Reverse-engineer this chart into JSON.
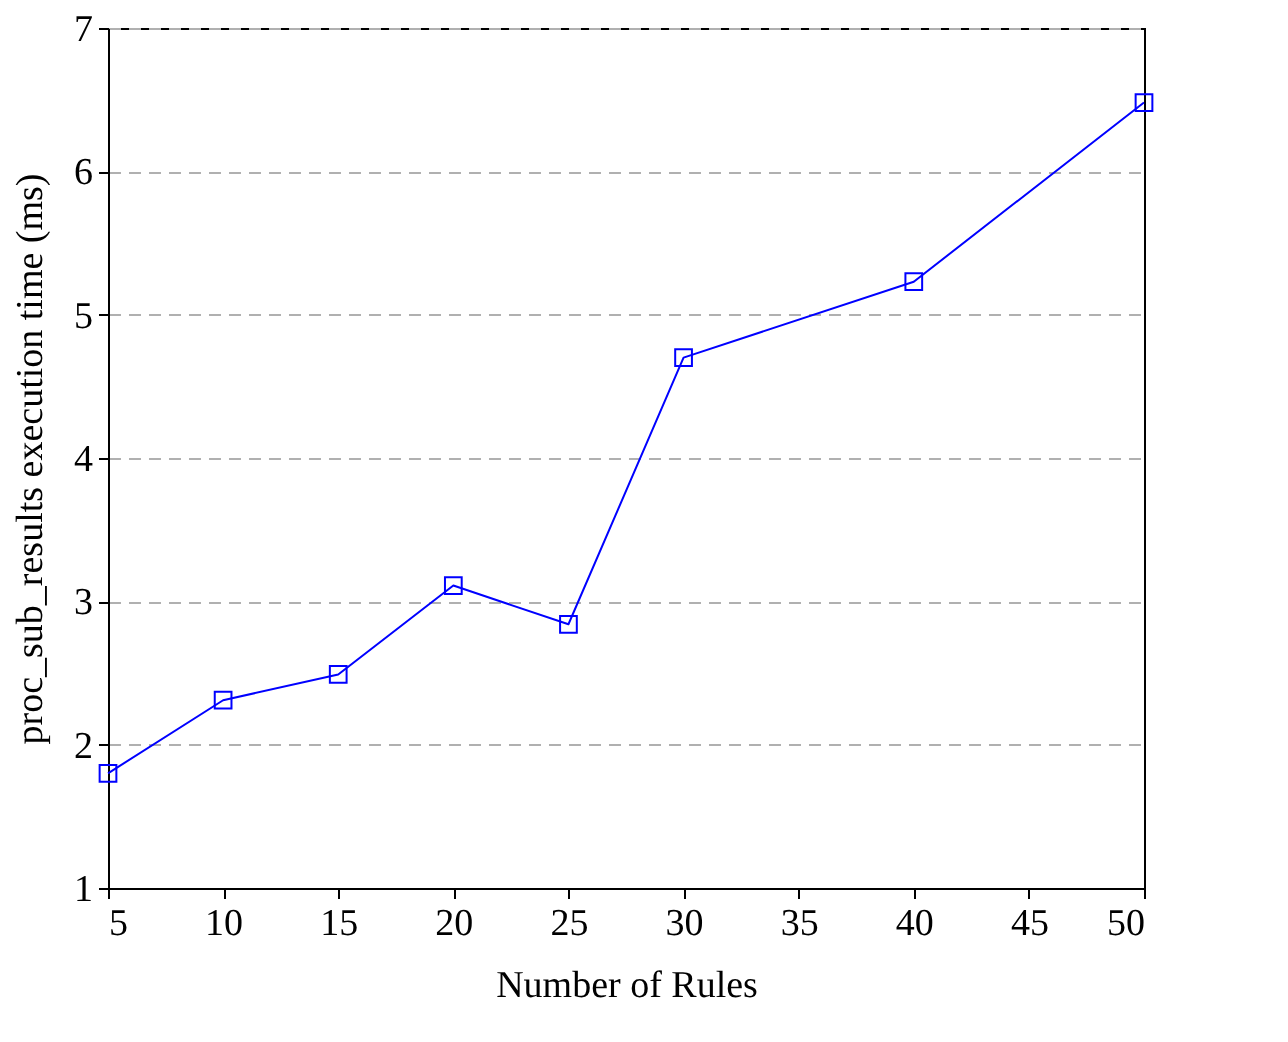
{
  "chart_data": {
    "type": "line",
    "xlabel": "Number of Rules",
    "ylabel": "proc_sub_results execution time (ms)",
    "x": [
      5,
      10,
      15,
      20,
      25,
      30,
      40,
      50
    ],
    "series": [
      {
        "color": "#0000ff",
        "values": [
          1.8,
          2.31,
          2.49,
          3.11,
          2.84,
          4.7,
          5.23,
          6.48
        ]
      }
    ],
    "xlim": [
      5,
      50
    ],
    "xticks": [
      5,
      10,
      15,
      20,
      25,
      30,
      35,
      40,
      45,
      50
    ],
    "ylim": [
      1,
      7
    ],
    "yticks": [
      1,
      2,
      3,
      4,
      5,
      6,
      7
    ],
    "grid": "y",
    "marker": "square",
    "line_style": "solid"
  }
}
